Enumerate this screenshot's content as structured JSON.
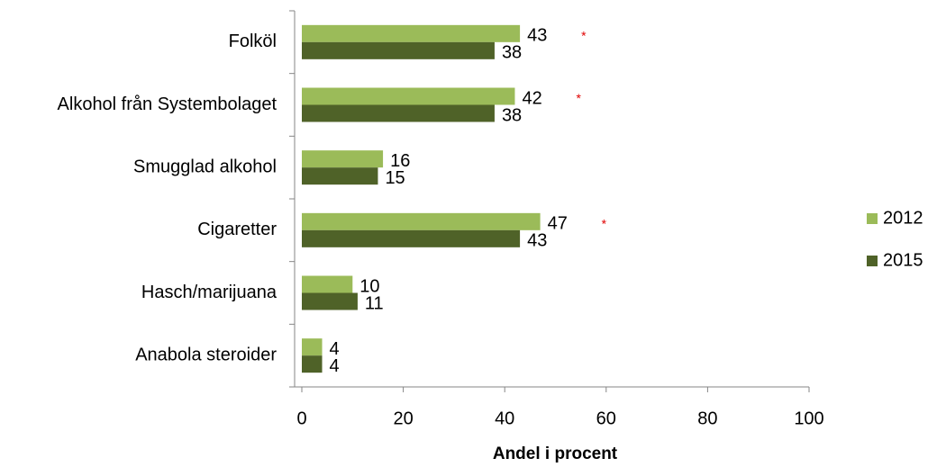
{
  "chart_data": {
    "type": "bar",
    "orientation": "horizontal",
    "x_label": "Andel i procent",
    "categories": [
      "Folköl",
      "Alkohol från Systembolaget",
      "Smugglad alkohol",
      "Cigaretter",
      "Hasch/marijuana",
      "Anabola steroider"
    ],
    "series": [
      {
        "name": "2012",
        "color": "#9bbb59",
        "values": [
          43,
          42,
          16,
          47,
          10,
          4
        ]
      },
      {
        "name": "2015",
        "color": "#4f6228",
        "values": [
          38,
          38,
          15,
          43,
          11,
          4
        ]
      }
    ],
    "significance_markers": [
      "*",
      "*",
      null,
      "*",
      null,
      null
    ],
    "xlim": [
      0,
      100
    ],
    "xticks": [
      0,
      20,
      40,
      60,
      80,
      100
    ],
    "legend": "right"
  }
}
